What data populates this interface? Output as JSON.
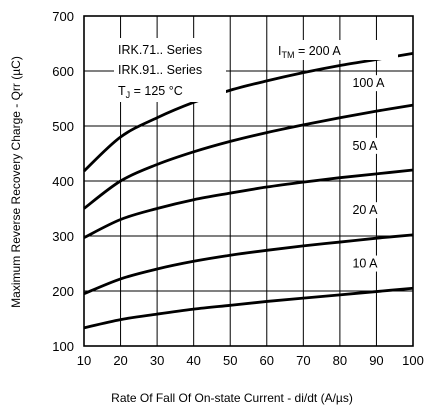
{
  "chart_data": {
    "type": "line",
    "title": "",
    "xlabel": "Rate Of Fall Of On-state Current - di/dt (A/µs)",
    "ylabel": "Maximum Reverse Recovery Charge - Qrr (µC)",
    "xlim": [
      10,
      100
    ],
    "ylim": [
      100,
      700
    ],
    "x_ticks": [
      10,
      20,
      30,
      40,
      50,
      60,
      70,
      80,
      90,
      100
    ],
    "y_ticks": [
      100,
      200,
      300,
      400,
      500,
      600,
      700
    ],
    "grid": true,
    "annotations": {
      "series_line1": "IRK.71.. Series",
      "series_line2": "IRK.91.. Series",
      "tj_label": "T",
      "tj_sub": "J",
      "tj_value": " = 125 °C",
      "itm_label": "I",
      "itm_sub": "TM",
      "itm_value": " = 200 A"
    },
    "x": [
      10,
      20,
      30,
      40,
      50,
      60,
      70,
      80,
      90,
      100
    ],
    "series": [
      {
        "name": "200 A",
        "label": "",
        "values": [
          418,
          480,
          515,
          543,
          565,
          582,
          597,
          610,
          621,
          632
        ]
      },
      {
        "name": "100 A",
        "label": "100 A",
        "values": [
          350,
          400,
          430,
          453,
          472,
          488,
          502,
          515,
          527,
          538
        ]
      },
      {
        "name": "50 A",
        "label": "50 A",
        "values": [
          297,
          330,
          350,
          366,
          378,
          389,
          398,
          406,
          413,
          420
        ]
      },
      {
        "name": "20 A",
        "label": "20 A",
        "values": [
          195,
          222,
          240,
          254,
          265,
          274,
          282,
          289,
          296,
          302
        ]
      },
      {
        "name": "10 A",
        "label": "10 A",
        "values": [
          133,
          148,
          158,
          167,
          174,
          181,
          187,
          193,
          199,
          205
        ]
      }
    ]
  }
}
